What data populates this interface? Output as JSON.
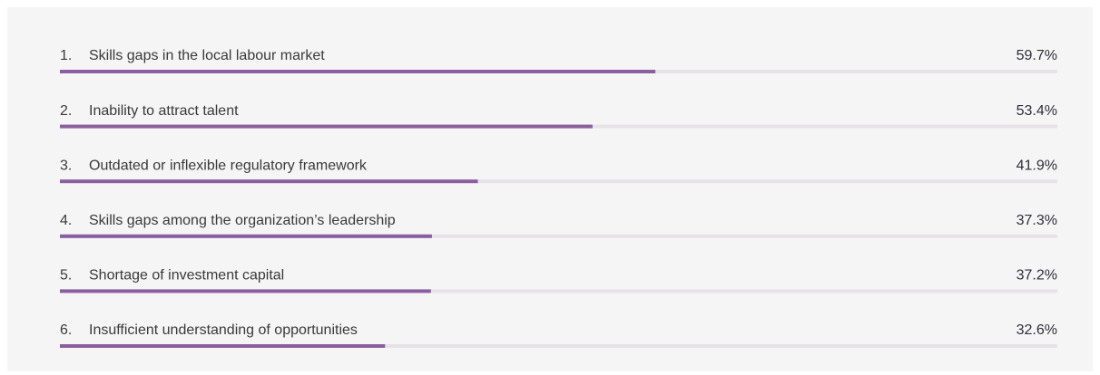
{
  "chart_data": {
    "type": "bar",
    "orientation": "horizontal",
    "ranks": [
      "1.",
      "2.",
      "3.",
      "4.",
      "5.",
      "6."
    ],
    "categories": [
      "Skills gaps in the local labour market",
      "Inability to attract talent",
      "Outdated or inflexible regulatory framework",
      "Skills gaps among the organization’s leadership",
      "Shortage of investment capital",
      "Insufficient understanding of opportunities"
    ],
    "values": [
      59.7,
      53.4,
      41.9,
      37.3,
      37.2,
      32.6
    ],
    "value_labels": [
      "59.7%",
      "53.4%",
      "41.9%",
      "37.3%",
      "37.2%",
      "32.6%"
    ],
    "color": "#8b5f9f",
    "xlim": [
      0,
      100
    ]
  }
}
